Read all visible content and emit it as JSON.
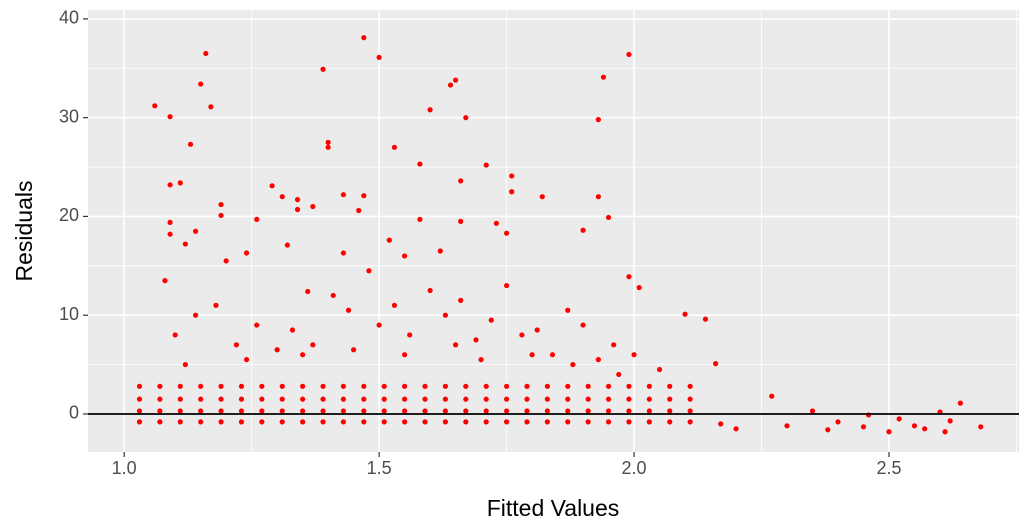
{
  "chart_data": {
    "type": "scatter",
    "x_label": "Fitted Values",
    "y_label": "Residuals",
    "xlim": [
      0.929,
      2.755
    ],
    "ylim": [
      -3.85,
      40.9
    ],
    "xticks": [
      {
        "value": 1.0,
        "label": "1.0"
      },
      1.5,
      {
        "value": 2.0,
        "label": "2.0"
      },
      2.5
    ],
    "yticks": [
      0,
      10,
      20,
      30,
      40
    ],
    "x_minor_grid": [
      1.25,
      1.75,
      2.25,
      2.75
    ],
    "y_minor_grid": [
      5,
      15,
      25,
      35
    ],
    "grid": true,
    "hline": 0,
    "color": "#ff0000",
    "x": [
      1.06,
      1.09,
      1.16,
      1.15,
      1.17,
      1.13,
      1.09,
      1.11,
      1.19,
      1.19,
      1.09,
      1.09,
      1.14,
      1.12,
      1.2,
      1.24,
      1.26,
      1.29,
      1.31,
      1.34,
      1.34,
      1.37,
      1.39,
      1.4,
      1.4,
      1.43,
      1.47,
      1.47,
      1.5,
      1.53,
      1.58,
      1.6,
      1.64,
      1.65,
      1.67,
      1.66,
      1.71,
      1.76,
      1.76,
      1.82,
      1.93,
      1.94,
      1.99,
      1.93,
      1.66,
      1.58,
      1.52,
      1.46,
      1.43,
      1.73,
      1.75,
      1.9,
      1.95,
      1.99,
      2.01,
      2.1,
      2.14,
      2.16,
      1.32,
      1.36,
      1.55,
      1.62,
      1.08,
      1.1,
      1.14,
      1.18,
      1.22,
      1.26,
      1.3,
      1.33,
      1.37,
      1.41,
      1.44,
      1.48,
      1.5,
      1.53,
      1.56,
      1.6,
      1.63,
      1.66,
      1.69,
      1.72,
      1.75,
      1.78,
      1.81,
      1.84,
      1.87,
      1.9,
      1.93,
      1.96,
      2.0,
      2.05,
      1.12,
      1.24,
      1.35,
      1.45,
      1.55,
      1.65,
      1.7,
      1.8,
      1.88,
      1.97,
      2.17,
      2.2,
      2.27,
      2.3,
      2.35,
      2.38,
      2.4,
      2.45,
      2.46,
      2.5,
      2.52,
      2.55,
      2.57,
      2.6,
      2.61,
      2.62,
      2.64,
      2.68,
      1.03,
      1.07,
      1.11,
      1.15,
      1.19,
      1.23,
      1.27,
      1.31,
      1.35,
      1.39,
      1.43,
      1.47,
      1.51,
      1.55,
      1.59,
      1.63,
      1.67,
      1.71,
      1.75,
      1.79,
      1.83,
      1.87,
      1.91,
      1.95,
      1.99,
      2.03,
      2.07,
      2.11,
      1.03,
      1.07,
      1.11,
      1.15,
      1.19,
      1.23,
      1.27,
      1.31,
      1.35,
      1.39,
      1.43,
      1.47,
      1.51,
      1.55,
      1.59,
      1.63,
      1.67,
      1.71,
      1.75,
      1.79,
      1.83,
      1.87,
      1.91,
      1.95,
      1.99,
      2.03,
      2.07,
      2.11,
      1.03,
      1.07,
      1.11,
      1.15,
      1.19,
      1.23,
      1.27,
      1.31,
      1.35,
      1.39,
      1.43,
      1.47,
      1.51,
      1.55,
      1.59,
      1.63,
      1.67,
      1.71,
      1.75,
      1.79,
      1.83,
      1.87,
      1.91,
      1.95,
      1.99,
      2.03,
      2.07,
      2.11,
      1.03,
      1.07,
      1.11,
      1.15,
      1.19,
      1.23,
      1.27,
      1.31,
      1.35,
      1.39,
      1.43,
      1.47,
      1.51,
      1.55,
      1.59,
      1.63,
      1.67,
      1.71,
      1.75,
      1.79,
      1.83,
      1.87,
      1.91,
      1.95,
      1.99,
      2.03,
      2.07,
      2.11
    ],
    "values": [
      31.2,
      30.1,
      36.5,
      33.4,
      31.1,
      27.3,
      23.2,
      23.4,
      21.2,
      20.1,
      19.4,
      18.2,
      18.5,
      17.2,
      15.5,
      16.3,
      19.7,
      23.1,
      22,
      21.7,
      20.7,
      21,
      34.9,
      27.5,
      27,
      22.2,
      38.1,
      22.1,
      36.1,
      27,
      25.3,
      30.8,
      33.3,
      33.8,
      30,
      23.6,
      25.2,
      24.1,
      22.5,
      22,
      29.8,
      34.1,
      36.4,
      22,
      19.5,
      19.7,
      17.6,
      20.6,
      16.3,
      19.3,
      18.3,
      18.6,
      19.9,
      13.9,
      12.8,
      10.1,
      9.6,
      5.1,
      17.1,
      12.4,
      16,
      16.5,
      13.5,
      8,
      10,
      11,
      7,
      9,
      6.5,
      8.5,
      7,
      12,
      10.5,
      14.5,
      9,
      11,
      8,
      12.5,
      10,
      11.5,
      7.5,
      9.5,
      13,
      8,
      8.5,
      6,
      10.5,
      9,
      5.5,
      7,
      6,
      4.5,
      5,
      5.5,
      6,
      6.5,
      6,
      7,
      5.5,
      6,
      5,
      4,
      -1,
      -1.5,
      1.8,
      -1.2,
      0.3,
      -1.6,
      -0.8,
      -1.3,
      -0.1,
      -1.8,
      -0.5,
      -1.2,
      -1.5,
      0.2,
      -1.8,
      -0.7,
      1.1,
      -1.3,
      -0.8,
      -0.8,
      -0.8,
      -0.8,
      -0.8,
      -0.8,
      -0.8,
      -0.8,
      -0.8,
      -0.8,
      -0.8,
      -0.8,
      -0.8,
      -0.8,
      -0.8,
      -0.8,
      -0.8,
      -0.8,
      -0.8,
      -0.8,
      -0.8,
      -0.8,
      -0.8,
      -0.8,
      -0.8,
      -0.8,
      -0.8,
      -0.8,
      0.3,
      0.3,
      0.3,
      0.3,
      0.3,
      0.3,
      0.3,
      0.3,
      0.3,
      0.3,
      0.3,
      0.3,
      0.3,
      0.3,
      0.3,
      0.3,
      0.3,
      0.3,
      0.3,
      0.3,
      0.3,
      0.3,
      0.3,
      0.3,
      0.3,
      0.3,
      0.3,
      0.3,
      1.5,
      1.5,
      1.5,
      1.5,
      1.5,
      1.5,
      1.5,
      1.5,
      1.5,
      1.5,
      1.5,
      1.5,
      1.5,
      1.5,
      1.5,
      1.5,
      1.5,
      1.5,
      1.5,
      1.5,
      1.5,
      1.5,
      1.5,
      1.5,
      1.5,
      1.5,
      1.5,
      1.5,
      2.8,
      2.8,
      2.8,
      2.8,
      2.8,
      2.8,
      2.8,
      2.8,
      2.8,
      2.8,
      2.8,
      2.8,
      2.8,
      2.8,
      2.8,
      2.8,
      2.8,
      2.8,
      2.8,
      2.8,
      2.8,
      2.8,
      2.8,
      2.8,
      2.8,
      2.8,
      2.8,
      2.8
    ]
  }
}
